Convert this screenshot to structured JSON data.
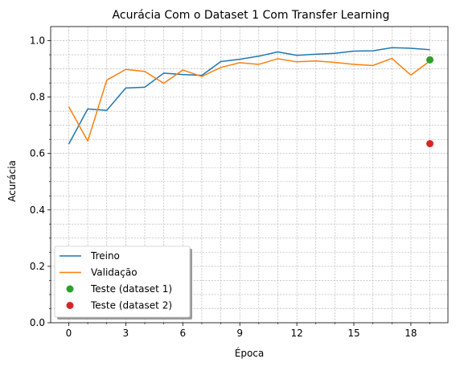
{
  "chart_data": {
    "type": "line",
    "title": "Acurácia Com o Dataset 1 Com Transfer Learning",
    "xlabel": "Época",
    "ylabel": "Acurácia",
    "xlim": [
      -0.95,
      19.95
    ],
    "ylim": [
      0,
      1.05
    ],
    "xticks": [
      0,
      3,
      6,
      9,
      12,
      15,
      18
    ],
    "yticks": [
      0.0,
      0.2,
      0.4,
      0.6,
      0.8,
      1.0
    ],
    "xtick_labels": [
      "0",
      "3",
      "6",
      "9",
      "12",
      "15",
      "18"
    ],
    "ytick_labels": [
      "0.0",
      "0.2",
      "0.4",
      "0.6",
      "0.8",
      "1.0"
    ],
    "grid": true,
    "legend_position": "bottom-left",
    "x": [
      0,
      1,
      2,
      3,
      4,
      5,
      6,
      7,
      8,
      9,
      10,
      11,
      12,
      13,
      14,
      15,
      16,
      17,
      18,
      19
    ],
    "series": [
      {
        "name": "Treino",
        "type": "line",
        "color": "#1f77b4",
        "values": [
          0.633,
          0.758,
          0.753,
          0.832,
          0.835,
          0.885,
          0.88,
          0.877,
          0.926,
          0.934,
          0.945,
          0.96,
          0.948,
          0.952,
          0.955,
          0.963,
          0.964,
          0.975,
          0.973,
          0.968
        ]
      },
      {
        "name": "Validação",
        "type": "line",
        "color": "#ff7f0e",
        "values": [
          0.766,
          0.644,
          0.86,
          0.898,
          0.891,
          0.849,
          0.896,
          0.873,
          0.905,
          0.922,
          0.916,
          0.936,
          0.925,
          0.928,
          0.923,
          0.916,
          0.912,
          0.937,
          0.878,
          0.928
        ]
      },
      {
        "name": "Teste (dataset 1)",
        "type": "point",
        "color": "#2ca02c",
        "x": 19,
        "value": 0.932
      },
      {
        "name": "Teste (dataset 2)",
        "type": "point",
        "color": "#d62728",
        "x": 19,
        "value": 0.635
      }
    ]
  }
}
